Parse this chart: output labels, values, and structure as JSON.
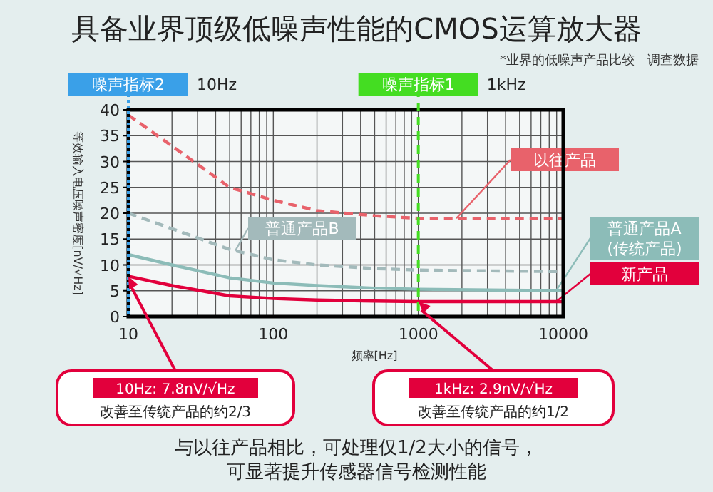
{
  "chart_data": {
    "type": "line",
    "title": "具备业界顶级低噪声性能的CMOS运算放大器",
    "subtitle": "*业界的低噪声产品比较　调查数据",
    "xlabel": "频率[Hz]",
    "ylabel": "等效输入电压噪声密度[nV/√Hz]",
    "log": "x",
    "grid": true,
    "xlim": [
      10,
      10000
    ],
    "xticks": [
      10,
      100,
      1000,
      10000
    ],
    "ylim": [
      0,
      40
    ],
    "yticks": [
      0,
      5,
      10,
      15,
      20,
      25,
      30,
      35,
      40
    ],
    "x": [
      10,
      20,
      50,
      100,
      200,
      500,
      1000,
      10000
    ],
    "series": [
      {
        "name": "以往产品",
        "color": "#e8626b",
        "line_style": "dashed",
        "values": [
          39,
          33,
          25,
          22.5,
          20.5,
          19.5,
          19,
          19
        ]
      },
      {
        "name": "普通产品B",
        "color": "#a3babb",
        "line_style": "dashed",
        "values": [
          20,
          17,
          13,
          11,
          10,
          9.3,
          9,
          8.7
        ]
      },
      {
        "name": "普通产品A\n(传统产品)",
        "color": "#8cbcb8",
        "line_style": "solid",
        "values": [
          12,
          10,
          7.5,
          6.5,
          6,
          5.5,
          5.3,
          5
        ]
      },
      {
        "name": "新产品",
        "color": "#e2003c",
        "line_style": "solid",
        "values": [
          7.8,
          6,
          4,
          3.5,
          3.2,
          3,
          2.9,
          2.9
        ]
      }
    ],
    "ref_lines": [
      {
        "axis": "x",
        "value": 10,
        "label": "噪声指标2",
        "color": "#3aa0e8",
        "line_style": "dotted"
      },
      {
        "axis": "x",
        "value": 1000,
        "label": "噪声指标1",
        "color": "#44dd22",
        "line_style": "dashed"
      }
    ],
    "annotations": [
      "10Hz",
      "1kHz",
      {
        "text": "10Hz: 7.8nV/√Hz\n改善至传统产品的约2/3",
        "x": 10,
        "y": 7.8
      },
      {
        "text": "1kHz: 2.9nV/√Hz\n改善至传统产品的约1/2",
        "x": 1000,
        "y": 2.9
      },
      "与以往产品相比，可处理仅1/2大小的信号，",
      "可显著提升传感器信号检测性能"
    ]
  }
}
